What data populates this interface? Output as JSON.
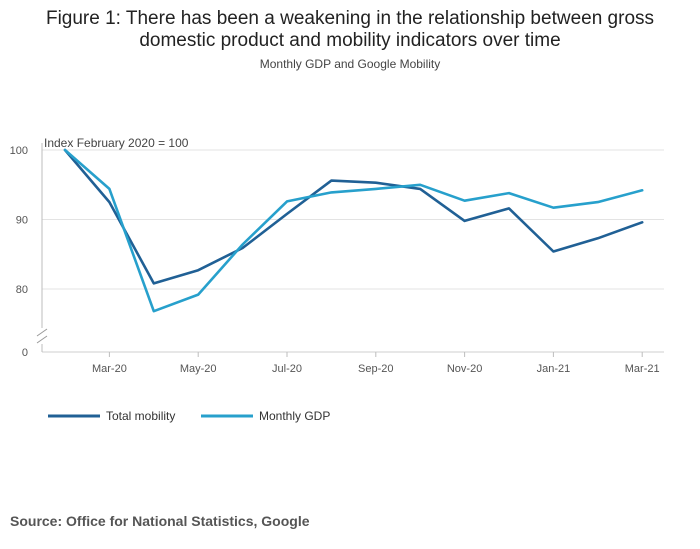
{
  "title_line1": "Figure 1: There has been a weakening in the relationship between gross",
  "title_line2": "domestic product and mobility indicators over time",
  "source": "Source: Office for National Statistics, Google",
  "chart_data": {
    "type": "line",
    "title": "Figure 1: There has been a weakening in the relationship between gross domestic product and mobility indicators over time",
    "subtitle": "Monthly GDP and Google Mobility",
    "ylabel": "Index February 2020 = 100",
    "x": [
      "Feb-20",
      "Mar-20",
      "Apr-20",
      "May-20",
      "Jun-20",
      "Jul-20",
      "Aug-20",
      "Sep-20",
      "Oct-20",
      "Nov-20",
      "Dec-20",
      "Jan-21",
      "Feb-21",
      "Mar-21"
    ],
    "xtick_labels": [
      "Mar-20",
      "May-20",
      "Jul-20",
      "Sep-20",
      "Nov-20",
      "Jan-21",
      "Mar-21"
    ],
    "ytick_labels": [
      "0",
      "80",
      "90",
      "100"
    ],
    "ylim": [
      70,
      100
    ],
    "axis_break": true,
    "legend_position": "bottom-left",
    "series": [
      {
        "name": "Total mobility",
        "color": "#206095",
        "values": [
          100,
          92.5,
          80.8,
          82.7,
          85.9,
          90.8,
          95.6,
          95.3,
          94.4,
          89.8,
          91.6,
          85.4,
          87.3,
          89.6
        ]
      },
      {
        "name": "Monthly GDP",
        "color": "#27a0cc",
        "values": [
          100,
          94.4,
          76.8,
          79.2,
          86.4,
          92.6,
          93.9,
          94.4,
          95.0,
          92.7,
          93.8,
          91.7,
          92.5,
          94.2
        ]
      }
    ]
  }
}
